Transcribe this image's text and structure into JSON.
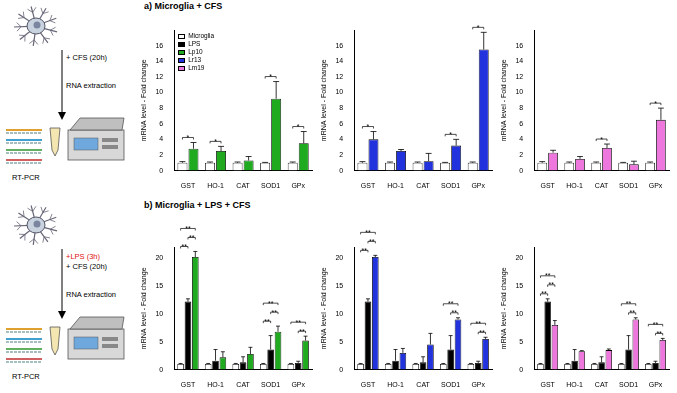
{
  "figure": {
    "panels": [
      {
        "title": "a) Microglia + CFS",
        "treatment": [
          {
            "text": "+ CFS (20h)",
            "color": "#000000"
          }
        ],
        "step": "RNA extraction",
        "method": "RT-PCR"
      },
      {
        "title": "b) Microglia + LPS + CFS",
        "treatment": [
          {
            "text": "+LPS (3h)",
            "color": "#e01010"
          },
          {
            "text": "+ CFS (20h)",
            "color": "#000000"
          }
        ],
        "step": "RNA extraction",
        "method": "RT-PCR"
      }
    ],
    "legend": "upper left",
    "legend_entries": [
      {
        "name": "Microglia",
        "color": "#ffffff"
      },
      {
        "name": "LPS",
        "color": "#000000"
      },
      {
        "name": "Lp10",
        "color": "#1faa1f"
      },
      {
        "name": "Lr13",
        "color": "#2233dd"
      },
      {
        "name": "Lm19",
        "color": "#ee77dd"
      }
    ]
  },
  "chart_data": [
    {
      "type": "bar",
      "y_label": "mRNA level - Fold change",
      "grid": false,
      "categories": [
        "GST",
        "HO-1",
        "CAT",
        "SOD1",
        "GPx"
      ],
      "ylim": [
        0,
        18
      ],
      "yticks": [
        0,
        2,
        4,
        6,
        8,
        10,
        12,
        14,
        16
      ],
      "series": [
        {
          "name": "Microglia",
          "color": "#ffffff",
          "values": [
            1,
            1,
            1,
            1,
            1
          ],
          "errors": [
            0.15,
            0.1,
            0.1,
            0.05,
            0.1
          ]
        },
        {
          "name": "Lp10",
          "color": "#1faa1f",
          "values": [
            2.8,
            2.5,
            1.3,
            9.2,
            3.5
          ],
          "errors": [
            0.8,
            0.6,
            0.5,
            2.2,
            1.5
          ]
        }
      ],
      "significance": [
        {
          "category": "GST",
          "from": "Microglia",
          "to": "Lp10",
          "label": "*"
        },
        {
          "category": "HO-1",
          "from": "Microglia",
          "to": "Lp10",
          "label": "*"
        },
        {
          "category": "SOD1",
          "from": "Microglia",
          "to": "Lp10",
          "label": "*"
        },
        {
          "category": "GPx",
          "from": "Microglia",
          "to": "Lp10",
          "label": "*"
        }
      ]
    },
    {
      "type": "bar",
      "y_label": "mRNA level - Fold change",
      "grid": false,
      "categories": [
        "GST",
        "HO-1",
        "CAT",
        "SOD1",
        "GPx"
      ],
      "ylim": [
        0,
        18
      ],
      "yticks": [
        0,
        2,
        4,
        6,
        8,
        10,
        12,
        14,
        16
      ],
      "series": [
        {
          "name": "Microglia",
          "color": "#ffffff",
          "values": [
            1,
            1,
            1,
            1,
            1
          ],
          "errors": [
            0.15,
            0.1,
            0.1,
            0.05,
            0.1
          ]
        },
        {
          "name": "Lr13",
          "color": "#2233dd",
          "values": [
            4.0,
            2.5,
            1.2,
            3.2,
            15.5
          ],
          "errors": [
            1.0,
            0.2,
            1.0,
            0.8,
            2.2
          ]
        }
      ],
      "significance": [
        {
          "category": "GST",
          "from": "Microglia",
          "to": "Lr13",
          "label": "*"
        },
        {
          "category": "SOD1",
          "from": "Microglia",
          "to": "Lr13",
          "label": "*"
        },
        {
          "category": "GPx",
          "from": "Microglia",
          "to": "Lr13",
          "label": "*"
        }
      ]
    },
    {
      "type": "bar",
      "y_label": "mRNA level - Fold change",
      "grid": false,
      "categories": [
        "GST",
        "HO-1",
        "CAT",
        "SOD1",
        "GPx"
      ],
      "ylim": [
        0,
        18
      ],
      "yticks": [
        0,
        2,
        4,
        6,
        8,
        10,
        12,
        14,
        16
      ],
      "series": [
        {
          "name": "Microglia",
          "color": "#ffffff",
          "values": [
            1,
            1,
            1,
            1,
            1
          ],
          "errors": [
            0.15,
            0.1,
            0.1,
            0.05,
            0.1
          ]
        },
        {
          "name": "Lm19",
          "color": "#ee77dd",
          "values": [
            2.3,
            1.5,
            2.9,
            0.8,
            6.5
          ],
          "errors": [
            0.3,
            0.3,
            0.5,
            0.4,
            1.5
          ]
        }
      ],
      "significance": [
        {
          "category": "CAT",
          "from": "Microglia",
          "to": "Lm19",
          "label": "*"
        },
        {
          "category": "GPx",
          "from": "Microglia",
          "to": "Lm19",
          "label": "*"
        }
      ]
    },
    {
      "type": "bar",
      "y_label": "mRNA level - Fold change",
      "grid": false,
      "categories": [
        "GST",
        "HO-1",
        "CAT",
        "SOD1",
        "GPx"
      ],
      "ylim": [
        0,
        22
      ],
      "yticks": [
        0,
        5,
        10,
        15,
        20
      ],
      "series": [
        {
          "name": "Microglia",
          "color": "#ffffff",
          "values": [
            1,
            1,
            1,
            1,
            1
          ],
          "errors": [
            0.1,
            0.1,
            0.1,
            0.1,
            0.1
          ]
        },
        {
          "name": "LPS",
          "color": "#000000",
          "values": [
            12.2,
            1.6,
            1.3,
            3.6,
            1.2
          ],
          "errors": [
            0.5,
            2.0,
            1.0,
            2.5,
            0.3
          ]
        },
        {
          "name": "Lp10",
          "color": "#1faa1f",
          "values": [
            20.2,
            2.2,
            2.8,
            6.8,
            5.2
          ],
          "errors": [
            1.0,
            1.0,
            1.2,
            1.0,
            0.8
          ]
        }
      ],
      "significance": [
        {
          "category": "GST",
          "from": "Microglia",
          "to": "LPS",
          "label": "**"
        },
        {
          "category": "GST",
          "from": "LPS",
          "to": "Lp10",
          "label": "**"
        },
        {
          "category": "GST",
          "from": "Microglia",
          "to": "Lp10",
          "label": "**"
        },
        {
          "category": "SOD1",
          "from": "Microglia",
          "to": "LPS",
          "label": "**"
        },
        {
          "category": "SOD1",
          "from": "LPS",
          "to": "Lp10",
          "label": "**"
        },
        {
          "category": "SOD1",
          "from": "Microglia",
          "to": "Lp10",
          "label": "**"
        },
        {
          "category": "GPx",
          "from": "LPS",
          "to": "Lp10",
          "label": "**"
        },
        {
          "category": "GPx",
          "from": "Microglia",
          "to": "Lp10",
          "label": "**"
        }
      ]
    },
    {
      "type": "bar",
      "y_label": "mRNA level - Fold change",
      "grid": false,
      "categories": [
        "GST",
        "HO-1",
        "CAT",
        "SOD1",
        "GPx"
      ],
      "ylim": [
        0,
        22
      ],
      "yticks": [
        0,
        5,
        10,
        15,
        20
      ],
      "series": [
        {
          "name": "Microglia",
          "color": "#ffffff",
          "values": [
            1,
            1,
            1,
            1,
            1
          ],
          "errors": [
            0.1,
            0.1,
            0.1,
            0.1,
            0.1
          ]
        },
        {
          "name": "LPS",
          "color": "#000000",
          "values": [
            12.2,
            1.6,
            1.3,
            3.6,
            1.2
          ],
          "errors": [
            0.5,
            2.0,
            1.0,
            2.5,
            0.3
          ]
        },
        {
          "name": "Lr13",
          "color": "#2233dd",
          "values": [
            20.2,
            3.0,
            4.5,
            9.0,
            5.5
          ],
          "errors": [
            0.3,
            0.8,
            2.0,
            0.3,
            0.3
          ]
        }
      ],
      "significance": [
        {
          "category": "GST",
          "from": "Microglia",
          "to": "LPS",
          "label": "**"
        },
        {
          "category": "GST",
          "from": "LPS",
          "to": "Lr13",
          "label": "**"
        },
        {
          "category": "GST",
          "from": "Microglia",
          "to": "Lr13",
          "label": "**"
        },
        {
          "category": "SOD1",
          "from": "LPS",
          "to": "Lr13",
          "label": "**"
        },
        {
          "category": "SOD1",
          "from": "Microglia",
          "to": "Lr13",
          "label": "**"
        },
        {
          "category": "GPx",
          "from": "LPS",
          "to": "Lr13",
          "label": "**"
        },
        {
          "category": "GPx",
          "from": "Microglia",
          "to": "Lr13",
          "label": "**"
        }
      ]
    },
    {
      "type": "bar",
      "y_label": "mRNA level - Fold change",
      "grid": false,
      "categories": [
        "GST",
        "HO-1",
        "CAT",
        "SOD1",
        "GPx"
      ],
      "ylim": [
        0,
        22
      ],
      "yticks": [
        0,
        5,
        10,
        15,
        20
      ],
      "series": [
        {
          "name": "Microglia",
          "color": "#ffffff",
          "values": [
            1,
            1,
            1,
            1,
            1
          ],
          "errors": [
            0.1,
            0.1,
            0.1,
            0.1,
            0.1
          ]
        },
        {
          "name": "LPS",
          "color": "#000000",
          "values": [
            12.2,
            1.6,
            1.3,
            3.6,
            1.2
          ],
          "errors": [
            0.5,
            2.0,
            1.0,
            2.5,
            0.3
          ]
        },
        {
          "name": "Lm19",
          "color": "#ee77dd",
          "values": [
            8.0,
            3.3,
            3.5,
            9.0,
            5.3
          ],
          "errors": [
            0.8,
            0.1,
            0.2,
            0.3,
            0.3
          ]
        }
      ],
      "significance": [
        {
          "category": "GST",
          "from": "Microglia",
          "to": "LPS",
          "label": "**"
        },
        {
          "category": "GST",
          "from": "LPS",
          "to": "Lm19",
          "label": "**"
        },
        {
          "category": "GST",
          "from": "Microglia",
          "to": "Lm19",
          "label": "**"
        },
        {
          "category": "SOD1",
          "from": "LPS",
          "to": "Lm19",
          "label": "**"
        },
        {
          "category": "SOD1",
          "from": "Microglia",
          "to": "Lm19",
          "label": "**"
        },
        {
          "category": "GPx",
          "from": "LPS",
          "to": "Lm19",
          "label": "**"
        },
        {
          "category": "GPx",
          "from": "Microglia",
          "to": "Lm19",
          "label": "**"
        }
      ]
    }
  ]
}
